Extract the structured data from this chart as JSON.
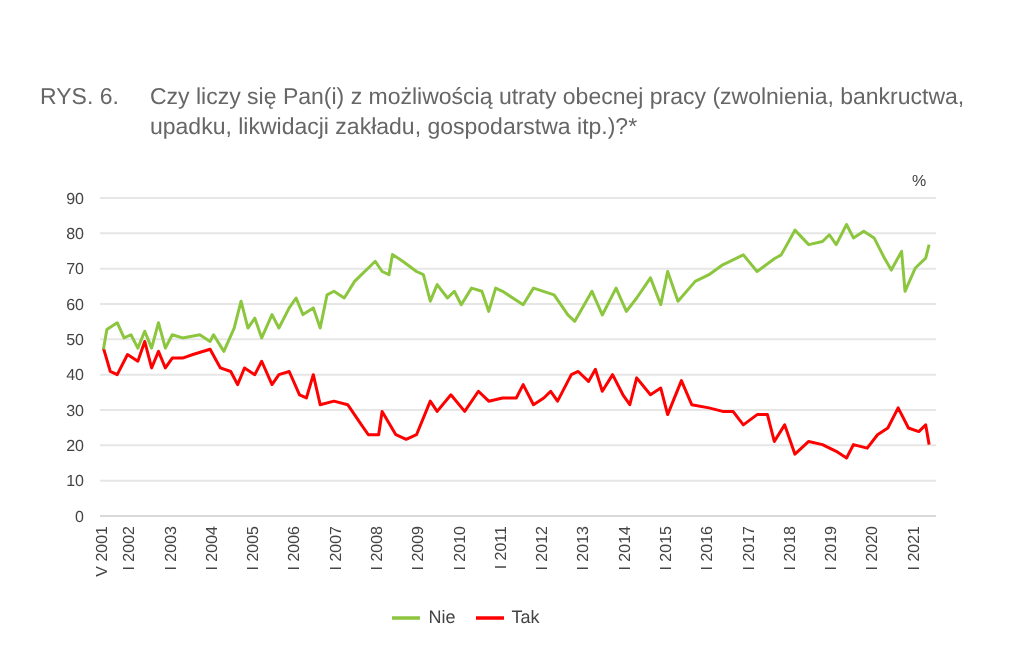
{
  "chart_data": {
    "type": "line",
    "title": "RYS. 6.",
    "subtitle": "Czy liczy się Pan(i) z możliwością utraty obecnej pracy (zwolnienia, bankructwa, upadku, likwidacji zakładu, gospodarstwa itp.)?*",
    "ylabel": "%",
    "xlim": [
      "2001-04",
      "2021-07"
    ],
    "xticks": [
      {
        "value": "2001-05",
        "label": "V 2001"
      },
      {
        "value": "2002-01",
        "label": "I 2002"
      },
      {
        "value": "2003-01",
        "label": "I 2003"
      },
      {
        "value": "2004-01",
        "label": "I 2004"
      },
      {
        "value": "2005-01",
        "label": "I 2005"
      },
      {
        "value": "2006-01",
        "label": "I 2006"
      },
      {
        "value": "2007-01",
        "label": "I 2007"
      },
      {
        "value": "2008-01",
        "label": "I 2008"
      },
      {
        "value": "2009-01",
        "label": "I 2009"
      },
      {
        "value": "2010-01",
        "label": "I 2010"
      },
      {
        "value": "2011-01",
        "label": "I 2011"
      },
      {
        "value": "2012-01",
        "label": "I 2012"
      },
      {
        "value": "2013-01",
        "label": "I 2013"
      },
      {
        "value": "2014-01",
        "label": "I 2014"
      },
      {
        "value": "2015-01",
        "label": "I 2015"
      },
      {
        "value": "2016-01",
        "label": "I 2016"
      },
      {
        "value": "2017-01",
        "label": "I 2017"
      },
      {
        "value": "2018-01",
        "label": "I 2018"
      },
      {
        "value": "2019-01",
        "label": "I 2019"
      },
      {
        "value": "2020-01",
        "label": "I 2020"
      },
      {
        "value": "2021-01",
        "label": "I 2021"
      }
    ],
    "ylim": [
      0,
      90
    ],
    "yticks": [
      0,
      10,
      20,
      30,
      40,
      50,
      60,
      70,
      80,
      90
    ],
    "grid": "y",
    "legend": "bottom",
    "marker": "none",
    "line_style": "solid",
    "series": [
      {
        "name": "Tak",
        "color": "#ff0000",
        "x": [
          "2001-05",
          "2001-07",
          "2001-09",
          "2001-12",
          "2002-03",
          "2002-05",
          "2002-07",
          "2002-09",
          "2002-11",
          "2003-01",
          "2003-04",
          "2003-07",
          "2003-12",
          "2004-03",
          "2004-06",
          "2004-08",
          "2004-10",
          "2005-01",
          "2005-03",
          "2005-06",
          "2005-08",
          "2005-11",
          "2006-02",
          "2006-04",
          "2006-06",
          "2006-08",
          "2006-12",
          "2007-04",
          "2007-08",
          "2007-10",
          "2008-01",
          "2008-02",
          "2008-06",
          "2008-09",
          "2008-12",
          "2009-04",
          "2009-06",
          "2009-10",
          "2010-02",
          "2010-06",
          "2010-09",
          "2011-01",
          "2011-05",
          "2011-07",
          "2011-10",
          "2012-01",
          "2012-03",
          "2012-05",
          "2012-09",
          "2012-11",
          "2013-02",
          "2013-04",
          "2013-06",
          "2013-09",
          "2013-12",
          "2014-02",
          "2014-04",
          "2014-08",
          "2014-11",
          "2015-01",
          "2015-05",
          "2015-08",
          "2016-01",
          "2016-05",
          "2016-08",
          "2016-11",
          "2017-03",
          "2017-06",
          "2017-08",
          "2017-11",
          "2018-02",
          "2018-06",
          "2018-10",
          "2019-02",
          "2019-05",
          "2019-07",
          "2019-11",
          "2020-02",
          "2020-05",
          "2020-08",
          "2020-11",
          "2021-02",
          "2021-04",
          "2021-05"
        ],
        "values": [
          47.5,
          40.9,
          40,
          45.7,
          43.8,
          49.4,
          41.9,
          46.6,
          41.9,
          44.7,
          44.7,
          45.7,
          47.2,
          41.9,
          40.9,
          37.2,
          41.9,
          40,
          43.8,
          37.2,
          40,
          40.9,
          34.3,
          33.4,
          40,
          31.5,
          32.5,
          31.5,
          25.8,
          23,
          23,
          29.6,
          23,
          21.7,
          23,
          32.5,
          29.6,
          34.3,
          29.6,
          35.3,
          32.5,
          33.4,
          33.4,
          37.2,
          31.5,
          33.4,
          35.3,
          32.5,
          40,
          40.9,
          38.1,
          41.5,
          35.3,
          40,
          34.3,
          31.5,
          39.1,
          34.3,
          36.2,
          28.7,
          38.3,
          31.5,
          30.6,
          29.6,
          29.6,
          25.8,
          28.7,
          28.7,
          21.1,
          25.8,
          17.5,
          21.1,
          20.2,
          18.3,
          16.4,
          20.2,
          19.2,
          23,
          24.9,
          30.6,
          24.9,
          23.9,
          25.8,
          20.2
        ]
      },
      {
        "name": "Nie",
        "color": "#8cc63f",
        "x": [
          "2001-05",
          "2001-06",
          "2001-09",
          "2001-11",
          "2002-01",
          "2002-03",
          "2002-05",
          "2002-07",
          "2002-09",
          "2002-11",
          "2003-01",
          "2003-04",
          "2003-09",
          "2003-12",
          "2004-01",
          "2004-04",
          "2004-07",
          "2004-09",
          "2004-11",
          "2005-01",
          "2005-03",
          "2005-06",
          "2005-08",
          "2005-11",
          "2006-01",
          "2006-03",
          "2006-06",
          "2006-08",
          "2006-10",
          "2006-12",
          "2007-03",
          "2007-06",
          "2007-08",
          "2007-10",
          "2007-12",
          "2008-02",
          "2008-04",
          "2008-05",
          "2008-08",
          "2008-12",
          "2009-02",
          "2009-04",
          "2009-06",
          "2009-09",
          "2009-11",
          "2010-01",
          "2010-04",
          "2010-07",
          "2010-09",
          "2010-11",
          "2011-01",
          "2011-07",
          "2011-10",
          "2012-04",
          "2012-08",
          "2012-10",
          "2013-03",
          "2013-06",
          "2013-10",
          "2014-01",
          "2014-04",
          "2014-08",
          "2014-11",
          "2015-01",
          "2015-04",
          "2015-09",
          "2016-01",
          "2016-05",
          "2016-11",
          "2017-03",
          "2017-08",
          "2017-10",
          "2018-02",
          "2018-06",
          "2018-10",
          "2018-12",
          "2019-02",
          "2019-05",
          "2019-07",
          "2019-10",
          "2020-01",
          "2020-04",
          "2020-06",
          "2020-09",
          "2020-10",
          "2021-01",
          "2021-04",
          "2021-05"
        ],
        "values": [
          47.2,
          52.8,
          54.7,
          50.4,
          51.3,
          47.5,
          52.3,
          47.5,
          54.7,
          47.5,
          51.3,
          50.4,
          51.3,
          49.4,
          51.3,
          46.6,
          53.2,
          60.8,
          53.2,
          56,
          50.4,
          57,
          53.2,
          58.9,
          61.7,
          57,
          58.9,
          53.2,
          62.6,
          63.6,
          61.7,
          66.4,
          68.3,
          70.2,
          72.1,
          69.2,
          68.3,
          74,
          72.1,
          69.2,
          68.3,
          60.8,
          65.5,
          61.7,
          63.6,
          59.8,
          64.5,
          63.6,
          57.9,
          64.5,
          63.6,
          59.8,
          64.5,
          62.6,
          56.9,
          55.1,
          63.6,
          56.9,
          64.5,
          57.9,
          61.7,
          67.4,
          59.8,
          69.2,
          60.8,
          66.4,
          68.3,
          71.1,
          73.9,
          69.2,
          72.8,
          73.9,
          80.9,
          76.8,
          77.7,
          79.6,
          76.8,
          82.5,
          78.7,
          80.6,
          78.7,
          73,
          69.6,
          74.9,
          63.6,
          70.2,
          73,
          76.8
        ]
      }
    ]
  }
}
